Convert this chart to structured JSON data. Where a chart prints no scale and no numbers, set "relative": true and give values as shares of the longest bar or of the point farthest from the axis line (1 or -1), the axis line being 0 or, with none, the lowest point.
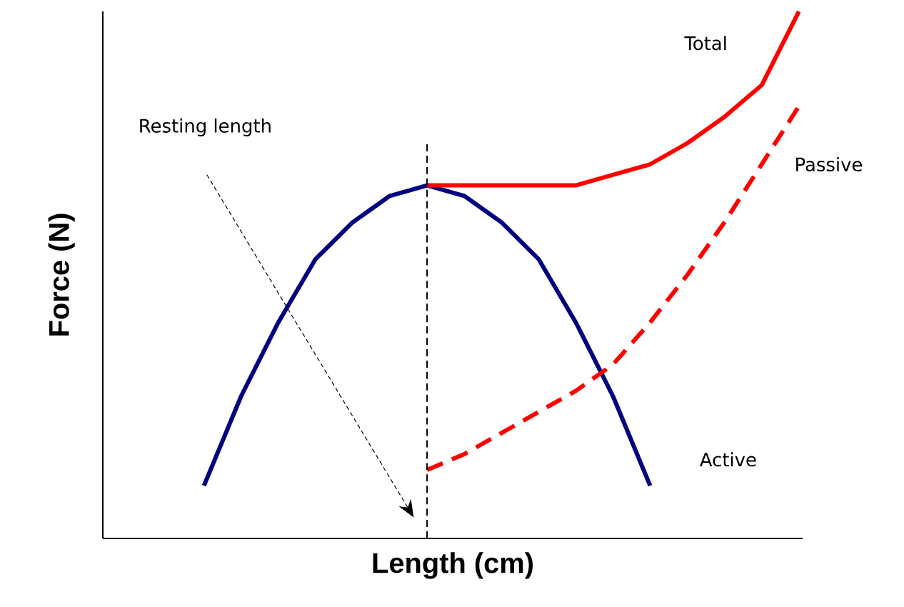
{
  "chart_data": {
    "type": "line",
    "relative": true,
    "xlabel": "Length (cm)",
    "ylabel": "Force (N)",
    "marker": "none",
    "categories": [
      null,
      null,
      null,
      null,
      null,
      null,
      null,
      null,
      null,
      null,
      null,
      null,
      null,
      null,
      null,
      null,
      null
    ],
    "series": [
      {
        "name": "Active",
        "color": "#000080",
        "line_style": "solid",
        "values": [
          0.1,
          0.27,
          0.41,
          0.53,
          0.6,
          0.65,
          0.67,
          0.65,
          0.6,
          0.53,
          0.41,
          0.27,
          0.1,
          null,
          null,
          null,
          null
        ]
      },
      {
        "name": "Passive",
        "color": "#ff0000",
        "line_style": "dashed",
        "values": [
          null,
          null,
          null,
          null,
          null,
          null,
          0.13,
          0.16,
          0.2,
          0.24,
          0.28,
          0.33,
          0.41,
          0.5,
          0.6,
          0.71,
          0.82
        ]
      },
      {
        "name": "Total",
        "color": "#ff0000",
        "line_style": "solid",
        "values": [
          null,
          null,
          null,
          null,
          null,
          null,
          0.67,
          0.67,
          0.67,
          0.67,
          0.67,
          0.69,
          0.71,
          0.75,
          0.8,
          0.86,
          1.0
        ]
      }
    ],
    "annotations": [
      "Resting length"
    ]
  }
}
